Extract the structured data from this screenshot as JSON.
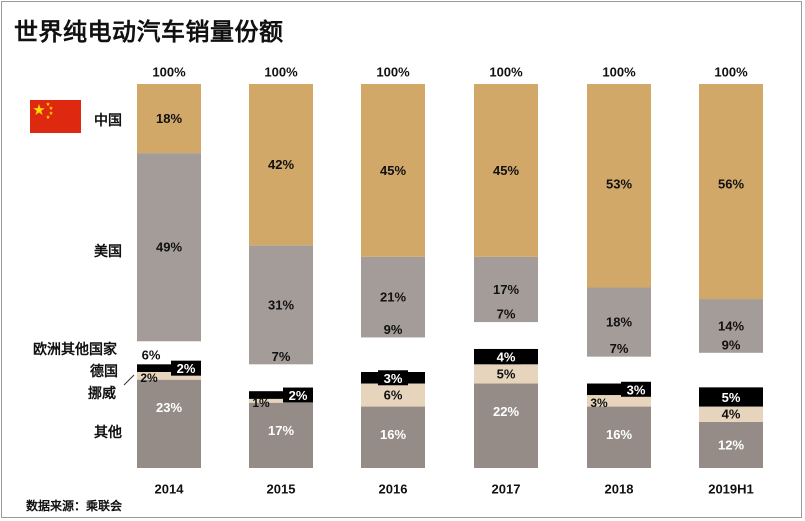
{
  "title": "世界纯电动汽车销量份额",
  "source": "数据来源：乘联会",
  "row_labels": {
    "china": "中国",
    "usa": "美国",
    "other_europe": "欧洲其他国家",
    "germany": "德国",
    "norway": "挪威",
    "other": "其他"
  },
  "colors": {
    "china": "#d1a868",
    "usa": "#a49c99",
    "other_europe": "#ffffff",
    "germany": "#000000",
    "norway": "#e6d4bd",
    "other": "#958c87"
  },
  "chart_data": {
    "type": "bar",
    "stacked": true,
    "categories": [
      "2014",
      "2015",
      "2016",
      "2017",
      "2018",
      "2019H1"
    ],
    "totals_label": [
      "100%",
      "100%",
      "100%",
      "100%",
      "100%",
      "100%"
    ],
    "series": [
      {
        "name": "其他",
        "values": [
          23,
          17,
          16,
          22,
          16,
          12
        ]
      },
      {
        "name": "挪威",
        "values": [
          2,
          1,
          6,
          5,
          3,
          4
        ]
      },
      {
        "name": "德国",
        "values": [
          2,
          2,
          3,
          4,
          3,
          5
        ]
      },
      {
        "name": "欧洲其他国家",
        "values": [
          6,
          7,
          9,
          7,
          7,
          9
        ]
      },
      {
        "name": "美国",
        "values": [
          49,
          31,
          21,
          17,
          18,
          14
        ]
      },
      {
        "name": "中国",
        "values": [
          18,
          42,
          45,
          45,
          53,
          56
        ]
      }
    ],
    "ylim": [
      0,
      100
    ]
  }
}
